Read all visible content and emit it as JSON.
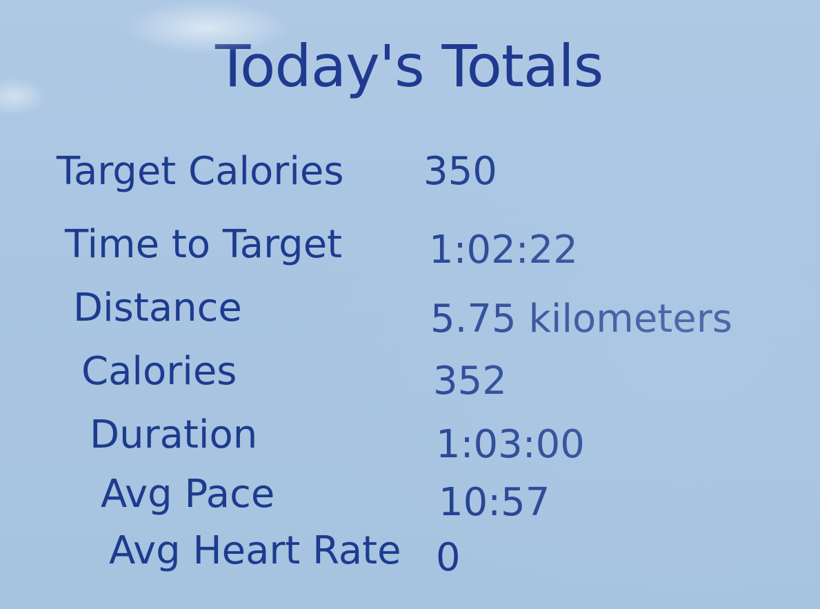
{
  "title": "Today's Totals",
  "rows": [
    {
      "label": "Target Calories",
      "value": "350"
    },
    {
      "label": "Time to Target",
      "value": "1:02:22"
    },
    {
      "label": "Distance",
      "value": "5.75 kilometers"
    },
    {
      "label": "Calories",
      "value": "352"
    },
    {
      "label": "Duration",
      "value": "1:03:00"
    },
    {
      "label": "Avg Pace",
      "value": "10:57"
    },
    {
      "label": "Avg Heart Rate",
      "value": "0"
    }
  ],
  "colors": {
    "text": "#1d3b8e",
    "background": "#a9c5e2"
  }
}
